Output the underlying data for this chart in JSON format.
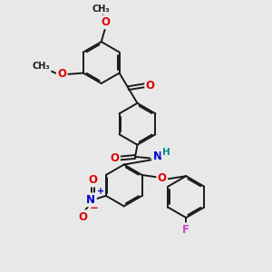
{
  "background_color": "#e8e8e8",
  "bond_color": "#1a1a1a",
  "bond_width": 1.4,
  "dbo": 0.055,
  "atom_colors": {
    "O": "#dd0000",
    "N": "#0000cc",
    "F": "#cc44cc",
    "H": "#008888",
    "C": "#1a1a1a"
  },
  "fs": 8.5,
  "fs_small": 7.0
}
